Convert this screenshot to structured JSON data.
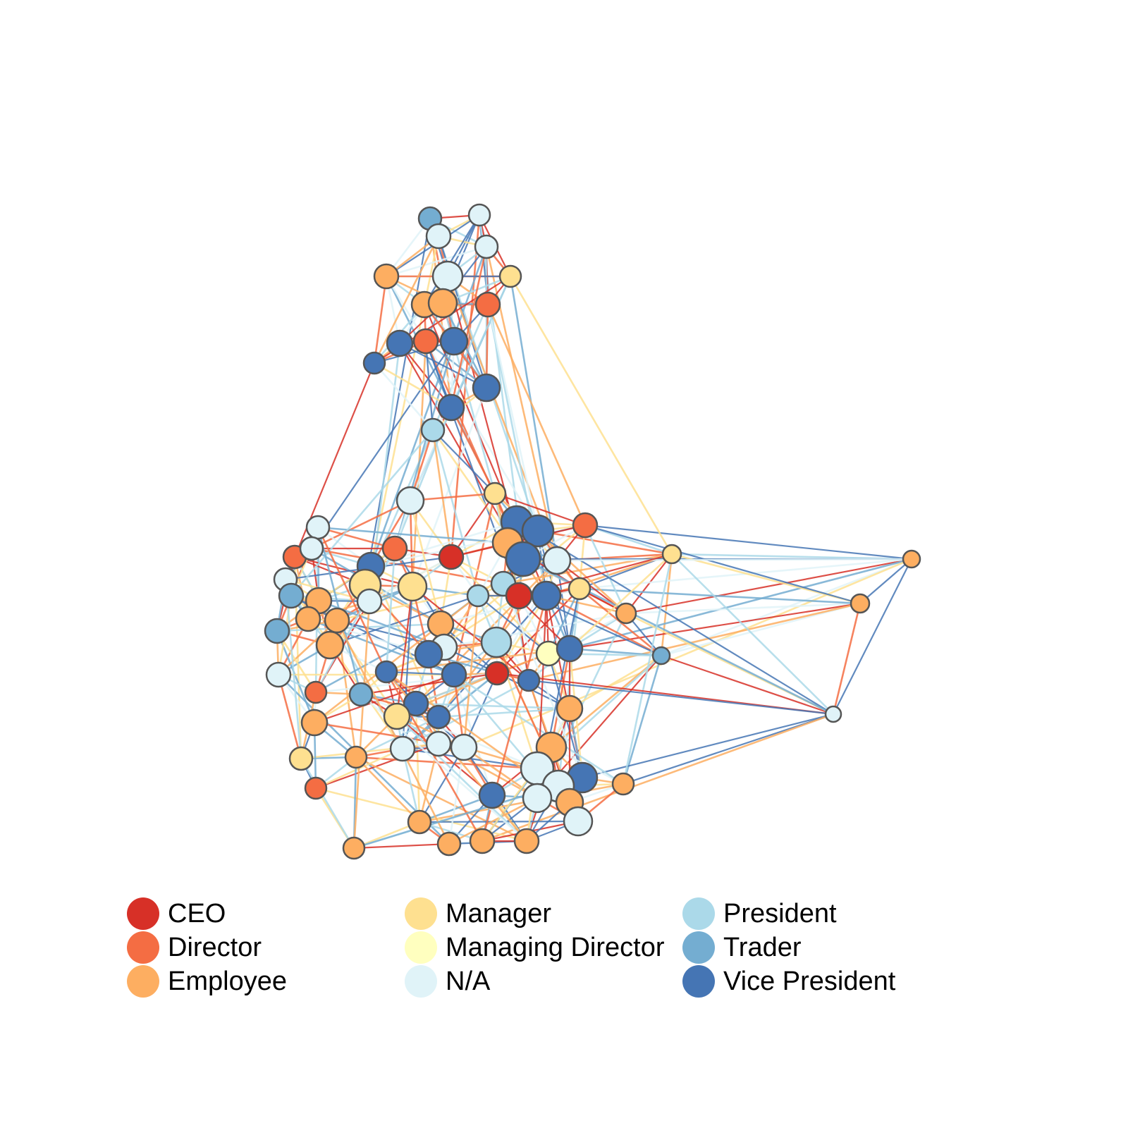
{
  "diagram": {
    "type": "network",
    "legend": [
      {
        "key": "ceo",
        "label": "CEO",
        "color": "#d73027"
      },
      {
        "key": "director",
        "label": "Director",
        "color": "#f46d43"
      },
      {
        "key": "employee",
        "label": "Employee",
        "color": "#fdae61"
      },
      {
        "key": "manager",
        "label": "Manager",
        "color": "#fee090"
      },
      {
        "key": "managing_director",
        "label": "Managing Director",
        "color": "#ffffbf"
      },
      {
        "key": "na",
        "label": "N/A",
        "color": "#e0f3f8"
      },
      {
        "key": "president",
        "label": "President",
        "color": "#abd9e9"
      },
      {
        "key": "trader",
        "label": "Trader",
        "color": "#74add1"
      },
      {
        "key": "vice_president",
        "label": "Vice President",
        "color": "#4575b4"
      }
    ],
    "node_stroke": "#555555"
  }
}
